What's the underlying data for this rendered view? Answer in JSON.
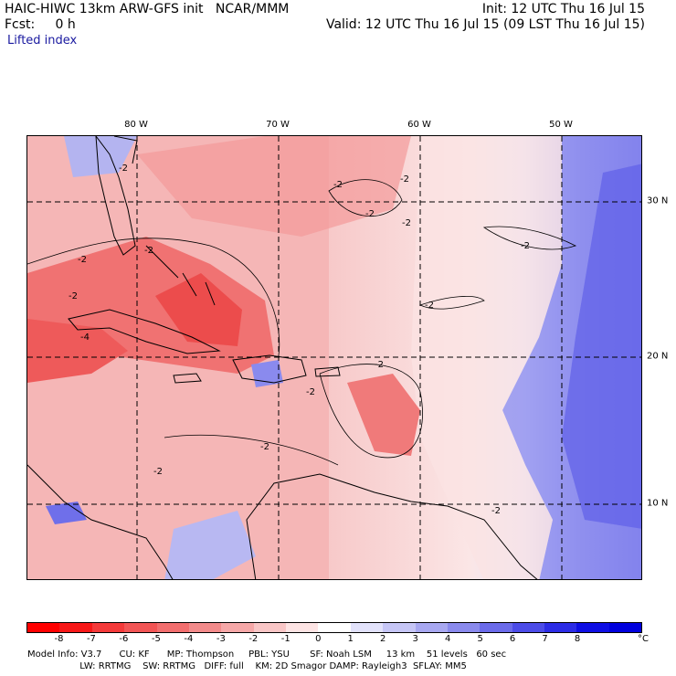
{
  "header": {
    "model_title": "HAIC-HIWC 13km ARW-GFS init   NCAR/MMM",
    "forecast": "Fcst:     0 h",
    "field": "Lifted index",
    "init": "Init: 12 UTC Thu 16 Jul 15",
    "valid": "Valid: 12 UTC Thu 16 Jul 15 (09 LST Thu 16 Jul 15)"
  },
  "map": {
    "longitude_labels": [
      "80 W",
      "70 W",
      "60 W",
      "50 W"
    ],
    "latitude_labels": [
      "30 N",
      "20 N",
      "10 N"
    ],
    "contour_label": "-2",
    "contour_label_neg4": "-4"
  },
  "colorbar": {
    "unit": "°C",
    "ticks": [
      "-8",
      "-7",
      "-6",
      "-5",
      "-4",
      "-3",
      "-2",
      "-1",
      "0",
      "1",
      "2",
      "3",
      "4",
      "5",
      "6",
      "7",
      "8"
    ],
    "colors": [
      "#ff0000",
      "#f81818",
      "#f43a3a",
      "#f25555",
      "#f26e6e",
      "#f38b8b",
      "#f6a8a8",
      "#f9c6c6",
      "#fde4e4",
      "#ffffff",
      "#e2e2fb",
      "#c6c6f6",
      "#a8a8f1",
      "#8a8aed",
      "#6b6bea",
      "#4c4ce8",
      "#2c2ce6",
      "#0e0ee4",
      "#0000dd"
    ]
  },
  "model_info": {
    "line1": "Model Info: V3.7      CU: KF      MP: Thompson     PBL: YSU       SF: Noah LSM     13 km    51 levels   60 sec",
    "line2": "                  LW: RRTMG    SW: RRTMG   DIFF: full    KM: 2D Smagor DAMP: Rayleigh3  SFLAY: MM5"
  }
}
